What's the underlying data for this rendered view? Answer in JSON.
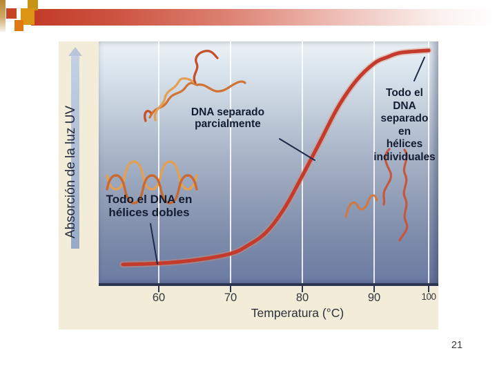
{
  "slide": {
    "page_number": "21"
  },
  "decoration": {
    "accent_red": "#c23a27",
    "accent_dark_gold": "#c79418",
    "accent_gold": "#db9414",
    "accent_orange": "#df7911"
  },
  "figure": {
    "y_axis_label": "Absorción de la luz UV",
    "x_axis_label": "Temperatura (°C)",
    "x_ticks": [
      "60",
      "70",
      "80",
      "90",
      "100"
    ],
    "annotations": {
      "partial": {
        "line1": "DNA separado",
        "line2": "parcialmente"
      },
      "double": {
        "line1": "Todo el DNA en",
        "line2": "hélices dobles"
      },
      "single": {
        "line1": "Todo el DNA",
        "line2": "separado en",
        "line3": "hélices",
        "line4": "individuales"
      }
    }
  },
  "chart_data": {
    "type": "line",
    "title": "",
    "xlabel": "Temperatura (°C)",
    "ylabel": "Absorción de la luz UV",
    "x_ticks": [
      60,
      70,
      80,
      90,
      100
    ],
    "xlim": [
      54,
      101
    ],
    "ylim": [
      0,
      1
    ],
    "y_scale_note": "eje Y sin escala numérica (absorción relativa)",
    "grid": "líneas verticales blancas en cada marca de temperatura",
    "legend": "none",
    "series": [
      {
        "name": "Absorción UV del DNA",
        "color": "#c43a2c",
        "x": [
          55,
          60,
          65,
          70,
          72.5,
          75,
          77.5,
          80,
          82.5,
          85,
          87.5,
          90,
          92.5,
          95,
          100
        ],
        "y_relative": [
          0.01,
          0.015,
          0.03,
          0.06,
          0.1,
          0.16,
          0.27,
          0.42,
          0.58,
          0.74,
          0.86,
          0.94,
          0.97,
          0.99,
          1.0
        ]
      }
    ],
    "annotations": [
      {
        "text": "Todo el DNA en hélices dobles",
        "x": 62,
        "y_relative": 0.02
      },
      {
        "text": "DNA separado parcialmente",
        "x": 79,
        "y_relative": 0.45
      },
      {
        "text": "Todo el DNA separado en hélices individuales",
        "x": 97,
        "y_relative": 1.0
      }
    ]
  }
}
